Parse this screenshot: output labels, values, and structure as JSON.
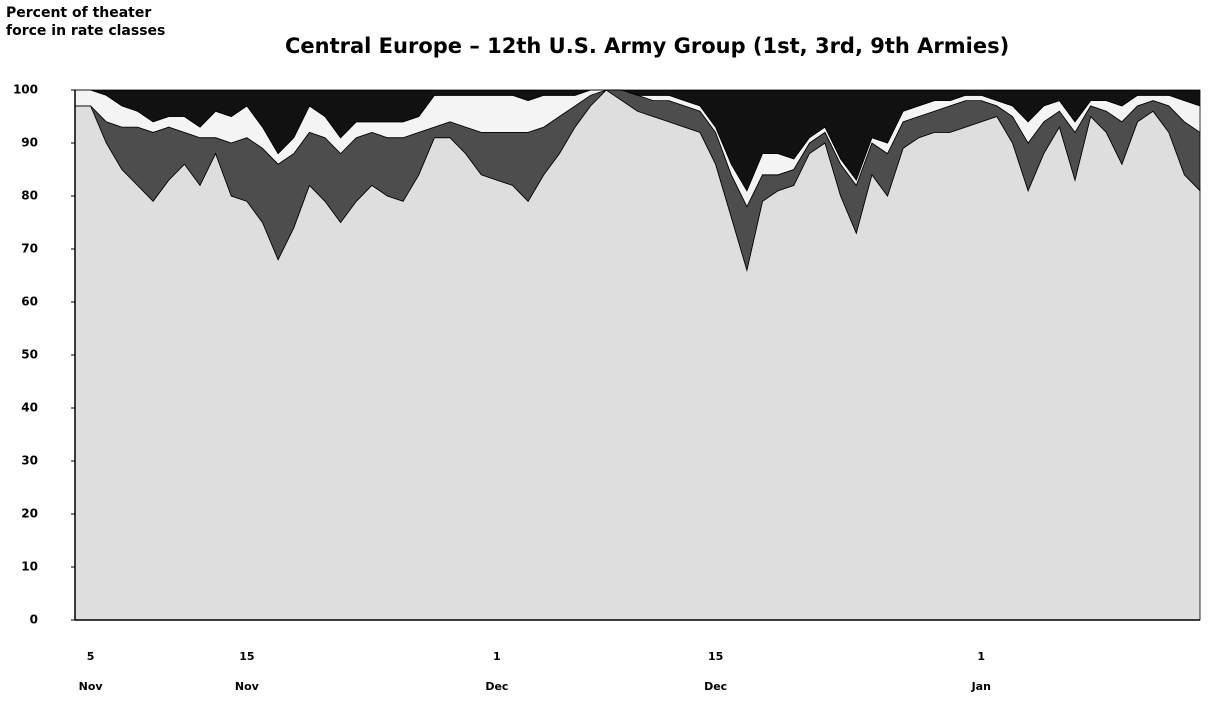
{
  "chart_data": {
    "type": "stacked_area",
    "title": "Central Europe – 12th U.S. Army Group (1st, 3rd, 9th Armies)",
    "y_label": "Percent of theater\nforce in rate classes",
    "categories": [
      null,
      "5\nNov",
      null,
      null,
      null,
      null,
      null,
      null,
      null,
      null,
      null,
      "15\nNov",
      null,
      null,
      null,
      null,
      null,
      null,
      null,
      null,
      null,
      null,
      null,
      null,
      null,
      null,
      null,
      "1\nDec",
      null,
      null,
      null,
      null,
      null,
      null,
      null,
      null,
      null,
      null,
      null,
      null,
      null,
      "15\nDec",
      null,
      null,
      null,
      null,
      null,
      null,
      null,
      null,
      null,
      null,
      null,
      null,
      null,
      null,
      null,
      null,
      "1\nJan",
      null,
      null,
      null,
      null,
      null,
      null,
      null,
      null,
      null,
      null,
      null,
      null,
      null,
      null
    ],
    "series": [
      {
        "color": "#dedede",
        "values": [
          97,
          97,
          90,
          85,
          82,
          79,
          83,
          86,
          82,
          88,
          80,
          79,
          75,
          68,
          74,
          82,
          79,
          75,
          79,
          82,
          80,
          79,
          84,
          91,
          91,
          88,
          84,
          83,
          82,
          79,
          84,
          88,
          93,
          97,
          100,
          98,
          96,
          95,
          94,
          93,
          92,
          86,
          76,
          66,
          79,
          81,
          82,
          88,
          90,
          80,
          73,
          84,
          80,
          89,
          91,
          92,
          92,
          93,
          94,
          95,
          90,
          81,
          88,
          93,
          83,
          95,
          92,
          86,
          94,
          96,
          92,
          84,
          81
        ]
      },
      {
        "color": "#4d4d4d",
        "values": [
          0,
          0,
          4,
          8,
          11,
          13,
          10,
          6,
          9,
          3,
          10,
          12,
          14,
          18,
          14,
          10,
          12,
          13,
          12,
          10,
          11,
          12,
          8,
          2,
          3,
          5,
          8,
          9,
          10,
          13,
          9,
          7,
          4,
          2,
          0,
          2,
          3,
          3,
          4,
          4,
          4,
          6,
          8,
          12,
          5,
          3,
          3,
          2,
          2,
          6,
          9,
          6,
          8,
          5,
          4,
          4,
          5,
          5,
          4,
          2,
          5,
          9,
          6,
          3,
          9,
          2,
          4,
          8,
          3,
          2,
          5,
          10,
          11
        ]
      },
      {
        "color": "#f4f4f4",
        "values": [
          3,
          3,
          5,
          4,
          3,
          2,
          2,
          3,
          2,
          5,
          5,
          6,
          4,
          2,
          3,
          5,
          4,
          3,
          3,
          2,
          3,
          3,
          3,
          6,
          5,
          6,
          7,
          7,
          7,
          6,
          6,
          4,
          2,
          1,
          0,
          0,
          0,
          1,
          1,
          1,
          1,
          1,
          2,
          3,
          4,
          4,
          2,
          1,
          1,
          1,
          1,
          1,
          2,
          2,
          2,
          2,
          1,
          1,
          1,
          1,
          2,
          4,
          3,
          2,
          2,
          1,
          2,
          3,
          2,
          1,
          2,
          4,
          5
        ]
      },
      {
        "color": "#111111",
        "values": [
          0,
          0,
          1,
          3,
          4,
          6,
          5,
          5,
          7,
          4,
          5,
          3,
          7,
          12,
          9,
          3,
          5,
          9,
          6,
          6,
          6,
          6,
          5,
          1,
          1,
          1,
          1,
          1,
          1,
          2,
          1,
          1,
          1,
          0,
          0,
          0,
          1,
          1,
          1,
          2,
          3,
          7,
          14,
          19,
          12,
          12,
          13,
          9,
          7,
          13,
          17,
          9,
          10,
          4,
          3,
          2,
          2,
          1,
          1,
          2,
          3,
          6,
          3,
          2,
          6,
          2,
          2,
          3,
          1,
          1,
          1,
          2,
          3
        ]
      }
    ],
    "ylim": [
      0,
      100
    ],
    "yticks": [
      0,
      10,
      20,
      30,
      40,
      50,
      60,
      70,
      80,
      90,
      100
    ]
  }
}
